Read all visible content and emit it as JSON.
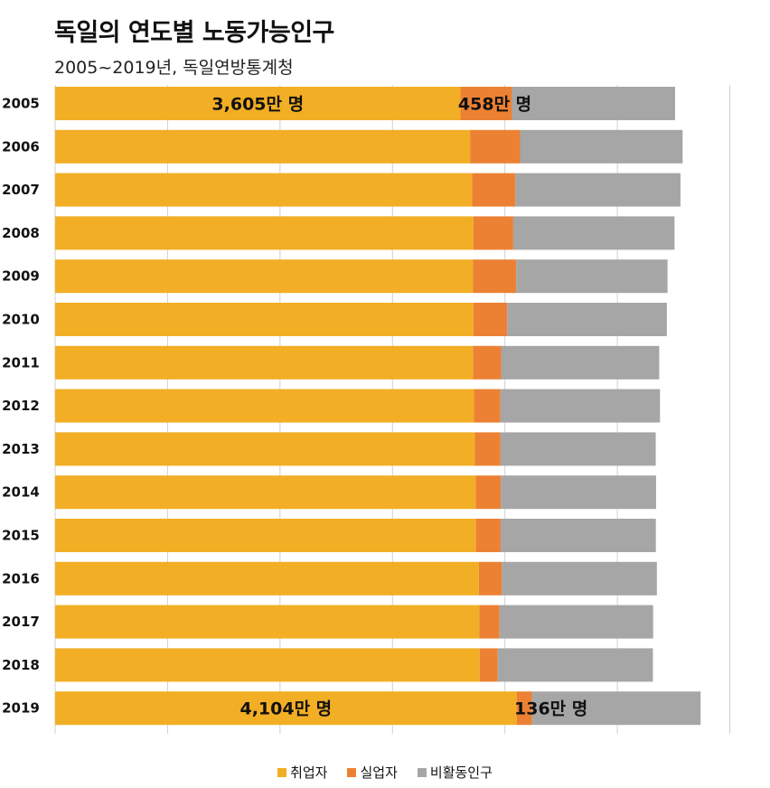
{
  "title": "독일의 연도별 노동가능인구",
  "subtitle": "2005~2019년, 독일연방통계청",
  "colors": {
    "employed": "#F2AE24",
    "unemployed": "#EC8133",
    "inactive": "#A6A6A6",
    "grid": "#D0D0D0"
  },
  "chart_data": {
    "type": "bar",
    "orientation": "horizontal",
    "stacked": true,
    "categories": [
      "2005",
      "2006",
      "2007",
      "2008",
      "2009",
      "2010",
      "2011",
      "2012",
      "2013",
      "2014",
      "2015",
      "2016",
      "2017",
      "2018",
      "2019"
    ],
    "series": [
      {
        "name": "취업자",
        "values": [
          3605,
          3690,
          3708,
          3719,
          3715,
          3720,
          3716,
          3724,
          3731,
          3739,
          3742,
          3768,
          3772,
          3776,
          4104
        ]
      },
      {
        "name": "실업자",
        "values": [
          458,
          445,
          385,
          355,
          385,
          300,
          250,
          235,
          230,
          225,
          220,
          205,
          180,
          160,
          136
        ]
      },
      {
        "name": "비활동인구",
        "values": [
          1450,
          1445,
          1468,
          1434,
          1346,
          1420,
          1406,
          1420,
          1380,
          1380,
          1380,
          1378,
          1366,
          1380,
          1500
        ]
      }
    ],
    "xlim": [
      0,
      6100
    ],
    "grid": true,
    "legend": "bottom",
    "annotations": [
      {
        "category": "2005",
        "series": "취업자",
        "text": "3,605만 명"
      },
      {
        "category": "2005",
        "series": "실업자",
        "text": "458만 명"
      },
      {
        "category": "2019",
        "series": "취업자",
        "text": "4,104만 명"
      },
      {
        "category": "2019",
        "series": "실업자",
        "text": "136만 명"
      }
    ]
  }
}
